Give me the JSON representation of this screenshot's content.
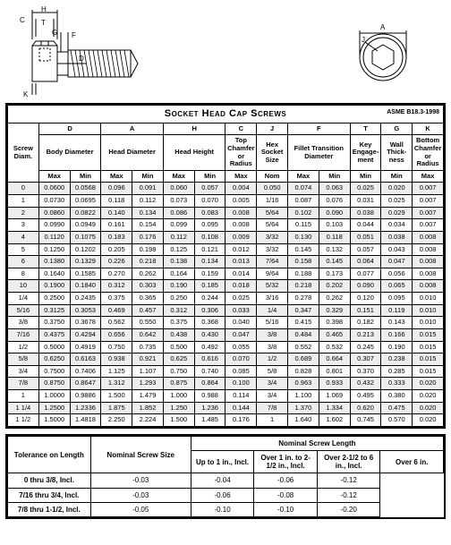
{
  "spec": "ASME B18.3-1998",
  "title": "Socket Head Cap Screws",
  "dim_labels": {
    "H": "H",
    "C": "C",
    "T": "T",
    "G": "G",
    "F": "F",
    "D": "D",
    "K": "K",
    "A": "A",
    "J": "J"
  },
  "columns_top": [
    {
      "key": "screw",
      "label": "Screw Diam.",
      "span": 1
    },
    {
      "key": "D",
      "label": "D",
      "span": 2
    },
    {
      "key": "A",
      "label": "A",
      "span": 2
    },
    {
      "key": "H",
      "label": "H",
      "span": 2
    },
    {
      "key": "C",
      "label": "C",
      "span": 1
    },
    {
      "key": "J",
      "label": "J",
      "span": 1
    },
    {
      "key": "F",
      "label": "F",
      "span": 2
    },
    {
      "key": "T",
      "label": "T",
      "span": 1
    },
    {
      "key": "G",
      "label": "G",
      "span": 1
    },
    {
      "key": "K",
      "label": "K",
      "span": 1
    }
  ],
  "columns_mid": [
    "Body Diameter",
    "Head Diameter",
    "Head Height",
    "Top Chamfer or Radius",
    "Hex Socket Size",
    "Fillet Transition Diameter",
    "Key Engage-ment",
    "Wall Thick-ness",
    "Bottom Chamfer or Radius"
  ],
  "columns_bot": [
    "Max",
    "Min",
    "Max",
    "Min",
    "Max",
    "Min",
    "Max",
    "Nom",
    "Max",
    "Min",
    "Min",
    "Min",
    "Max"
  ],
  "rows": [
    {
      "d": "0",
      "v": [
        "0.0600",
        "0.0568",
        "0.096",
        "0.091",
        "0.060",
        "0.057",
        "0.004",
        "0.050",
        "0.074",
        "0.063",
        "0.025",
        "0.020",
        "0.007"
      ]
    },
    {
      "d": "1",
      "v": [
        "0.0730",
        "0.0695",
        "0.118",
        "0.112",
        "0.073",
        "0.070",
        "0.005",
        "1/16",
        "0.087",
        "0.076",
        "0.031",
        "0.025",
        "0.007"
      ]
    },
    {
      "d": "2",
      "v": [
        "0.0860",
        "0.0822",
        "0.140",
        "0.134",
        "0.086",
        "0.083",
        "0.008",
        "5/64",
        "0.102",
        "0.090",
        "0.038",
        "0.029",
        "0.007"
      ]
    },
    {
      "d": "3",
      "v": [
        "0.0990",
        "0.0949",
        "0.161",
        "0.154",
        "0.099",
        "0.095",
        "0.008",
        "5/64",
        "0.115",
        "0.103",
        "0.044",
        "0.034",
        "0.007"
      ]
    },
    {
      "d": "4",
      "v": [
        "0.1120",
        "0.1075",
        "0.183",
        "0.176",
        "0.112",
        "0.108",
        "0.009",
        "3/32",
        "0.130",
        "0.118",
        "0.051",
        "0.038",
        "0.008"
      ]
    },
    {
      "d": "5",
      "v": [
        "0.1250",
        "0.1202",
        "0.205",
        "0.198",
        "0.125",
        "0.121",
        "0.012",
        "3/32",
        "0.145",
        "0.132",
        "0.057",
        "0.043",
        "0.008"
      ]
    },
    {
      "d": "6",
      "v": [
        "0.1380",
        "0.1329",
        "0.226",
        "0.218",
        "0.138",
        "0.134",
        "0.013",
        "7/64",
        "0.158",
        "0.145",
        "0.064",
        "0.047",
        "0.008"
      ]
    },
    {
      "d": "8",
      "v": [
        "0.1640",
        "0.1585",
        "0.270",
        "0.262",
        "0.164",
        "0.159",
        "0.014",
        "9/64",
        "0.188",
        "0.173",
        "0.077",
        "0.056",
        "0.008"
      ]
    },
    {
      "d": "10",
      "v": [
        "0.1900",
        "0.1840",
        "0.312",
        "0.303",
        "0.190",
        "0.185",
        "0.018",
        "5/32",
        "0.218",
        "0.202",
        "0.090",
        "0.065",
        "0.008"
      ]
    },
    {
      "d": "1/4",
      "v": [
        "0.2500",
        "0.2435",
        "0.375",
        "0.365",
        "0.250",
        "0.244",
        "0.025",
        "3/16",
        "0.278",
        "0.262",
        "0.120",
        "0.095",
        "0.010"
      ]
    },
    {
      "d": "5/16",
      "v": [
        "0.3125",
        "0.3053",
        "0.469",
        "0.457",
        "0.312",
        "0.306",
        "0.033",
        "1/4",
        "0.347",
        "0.329",
        "0.151",
        "0.119",
        "0.010"
      ]
    },
    {
      "d": "3/8",
      "v": [
        "0.3750",
        "0.3678",
        "0.562",
        "0.550",
        "0.375",
        "0.368",
        "0.040",
        "5/16",
        "0.415",
        "0.398",
        "0.182",
        "0.143",
        "0.010"
      ]
    },
    {
      "d": "7/16",
      "v": [
        "0.4375",
        "0.4294",
        "0.656",
        "0.642",
        "0.438",
        "0.430",
        "0.047",
        "3/8",
        "0.484",
        "0.465",
        "0.213",
        "0.166",
        "0.015"
      ]
    },
    {
      "d": "1/2",
      "v": [
        "0.5000",
        "0.4919",
        "0.750",
        "0.735",
        "0.500",
        "0.492",
        "0.055",
        "3/8",
        "0.552",
        "0.532",
        "0.245",
        "0.190",
        "0.015"
      ]
    },
    {
      "d": "5/8",
      "v": [
        "0.6250",
        "0.6163",
        "0.938",
        "0.921",
        "0.625",
        "0.616",
        "0.070",
        "1/2",
        "0.689",
        "0.664",
        "0.307",
        "0.238",
        "0.015"
      ]
    },
    {
      "d": "3/4",
      "v": [
        "0.7500",
        "0.7406",
        "1.125",
        "1.107",
        "0.750",
        "0.740",
        "0.085",
        "5/8",
        "0.828",
        "0.801",
        "0.370",
        "0.285",
        "0.015"
      ]
    },
    {
      "d": "7/8",
      "v": [
        "0.8750",
        "0.8647",
        "1.312",
        "1.293",
        "0.875",
        "0.864",
        "0.100",
        "3/4",
        "0.963",
        "0.933",
        "0.432",
        "0.333",
        "0.020"
      ]
    },
    {
      "d": "1",
      "v": [
        "1.0000",
        "0.9886",
        "1.500",
        "1.479",
        "1.000",
        "0.988",
        "0.114",
        "3/4",
        "1.100",
        "1.069",
        "0.495",
        "0.380",
        "0.020"
      ]
    },
    {
      "d": "1 1/4",
      "v": [
        "1.2500",
        "1.2336",
        "1.875",
        "1.852",
        "1.250",
        "1.236",
        "0.144",
        "7/8",
        "1.370",
        "1.334",
        "0.620",
        "0.475",
        "0.020"
      ]
    },
    {
      "d": "1 1/2",
      "v": [
        "1.5000",
        "1.4818",
        "2.250",
        "2.224",
        "1.500",
        "1.485",
        "0.176",
        "1",
        "1.640",
        "1.602",
        "0.745",
        "0.570",
        "0.020"
      ]
    }
  ],
  "tolerance": {
    "row_title": "Tolerance on Length",
    "nominal_title": "Nominal Screw Size",
    "length_title": "Nominal Screw Length",
    "length_cols": [
      "Up to 1 in., Incl.",
      "Over 1 in. to 2-1/2 in., Incl.",
      "Over 2-1/2 to 6 in., Incl.",
      "Over 6 in."
    ],
    "rows": [
      {
        "size": "0 thru 3/8, Incl.",
        "v": [
          "-0.03",
          "-0.04",
          "-0.06",
          "-0.12"
        ]
      },
      {
        "size": "7/16 thru 3/4, Incl.",
        "v": [
          "-0.03",
          "-0.06",
          "-0.08",
          "-0.12"
        ]
      },
      {
        "size": "7/8 thru 1-1/2, Incl.",
        "v": [
          "-0.05",
          "-0.10",
          "-0.10",
          "-0.20"
        ]
      }
    ]
  }
}
